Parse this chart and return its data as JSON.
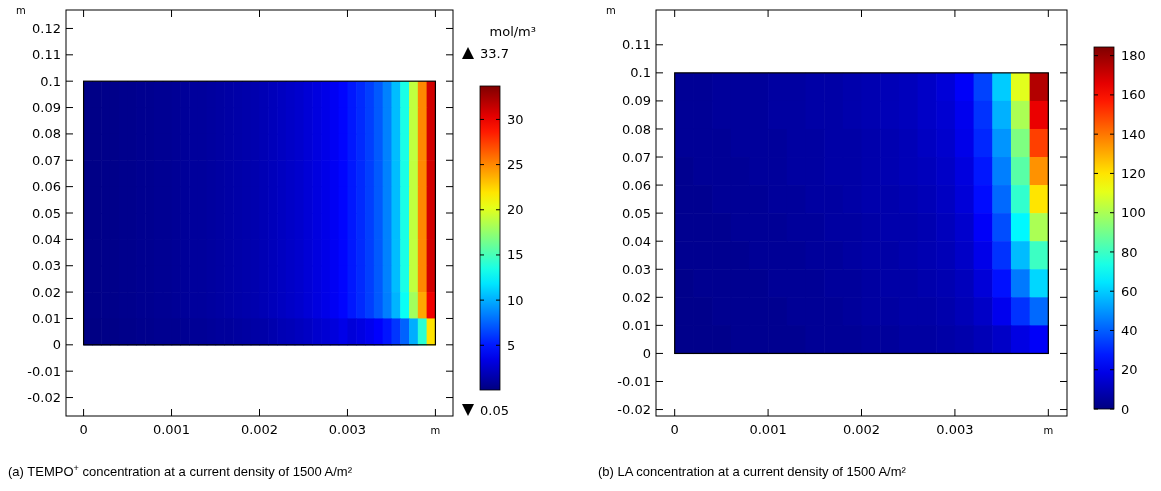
{
  "chart_data": [
    {
      "type": "heatmap",
      "title": "(a) TEMPO$^{+}$ concentration at a current density of 1500 A/m²",
      "xlabel": "m",
      "ylabel": "m",
      "clabel": "mol/m³",
      "xlim": [
        -0.0002,
        0.0042
      ],
      "ylim": [
        -0.027,
        0.127
      ],
      "xticks": [
        0,
        0.001,
        0.002,
        0.003,
        {
          "value": 0.004,
          "label": null
        }
      ],
      "yticks": [
        -0.02,
        -0.01,
        0,
        0.01,
        0.02,
        0.03,
        0.04,
        0.05,
        0.06,
        0.07,
        0.08,
        0.09,
        0.1,
        0.11,
        0.12
      ],
      "clim": [
        0.05,
        33.7
      ],
      "cticks": [
        5,
        10,
        15,
        20,
        25,
        30
      ],
      "annotations": [
        "33.7",
        "0.05"
      ],
      "x": [
        5e-05,
        0.00015,
        0.00025,
        0.00035,
        0.00045,
        0.00055,
        0.00065,
        0.00075,
        0.00085,
        0.00095,
        0.00105,
        0.00115,
        0.00125,
        0.00135,
        0.00145,
        0.00155,
        0.00165,
        0.00175,
        0.00185,
        0.00195,
        0.00205,
        0.00215,
        0.00225,
        0.00235,
        0.00245,
        0.00255,
        0.00265,
        0.00275,
        0.00285,
        0.00295,
        0.00305,
        0.00315,
        0.00325,
        0.00335,
        0.00345,
        0.00355,
        0.00365,
        0.00375,
        0.00385,
        0.00395
      ],
      "y": [
        0.095,
        0.085,
        0.075,
        0.065,
        0.055,
        0.045,
        0.035,
        0.025,
        0.015,
        0.005
      ],
      "cells": [
        [
          0.3,
          0.3,
          0.4,
          0.4,
          0.5,
          0.5,
          0.6,
          0.6,
          0.7,
          0.7,
          0.8,
          0.9,
          1.0,
          1.0,
          1.1,
          1.2,
          1.3,
          1.4,
          1.5,
          1.6,
          1.8,
          2.0,
          2.2,
          2.4,
          2.6,
          2.9,
          3.2,
          3.5,
          3.9,
          4.4,
          5,
          5.6,
          6.3,
          7.2,
          8.5,
          10.5,
          13.5,
          19,
          25,
          31
        ],
        [
          0.3,
          0.3,
          0.4,
          0.4,
          0.5,
          0.5,
          0.6,
          0.6,
          0.7,
          0.7,
          0.8,
          0.9,
          1.0,
          1.0,
          1.1,
          1.2,
          1.3,
          1.4,
          1.5,
          1.6,
          1.8,
          2.0,
          2.2,
          2.4,
          2.6,
          2.9,
          3.2,
          3.5,
          3.9,
          4.4,
          5,
          5.6,
          6.3,
          7.2,
          8.5,
          10.5,
          13.5,
          19,
          25,
          31
        ],
        [
          0.3,
          0.3,
          0.4,
          0.4,
          0.5,
          0.5,
          0.6,
          0.6,
          0.7,
          0.7,
          0.8,
          0.9,
          1.0,
          1.0,
          1.1,
          1.2,
          1.3,
          1.4,
          1.5,
          1.6,
          1.8,
          2.0,
          2.2,
          2.4,
          2.6,
          2.9,
          3.2,
          3.5,
          3.9,
          4.4,
          5,
          5.6,
          6.3,
          7.2,
          8.5,
          10.5,
          13.5,
          19,
          25,
          31
        ],
        [
          0.3,
          0.3,
          0.4,
          0.4,
          0.5,
          0.5,
          0.6,
          0.6,
          0.7,
          0.7,
          0.8,
          0.9,
          1.0,
          1.0,
          1.1,
          1.2,
          1.3,
          1.4,
          1.5,
          1.6,
          1.8,
          2.0,
          2.2,
          2.4,
          2.6,
          2.9,
          3.2,
          3.5,
          3.9,
          4.4,
          5,
          5.6,
          6.3,
          7.2,
          8.5,
          10.5,
          13.5,
          19,
          25,
          31
        ],
        [
          0.3,
          0.3,
          0.4,
          0.4,
          0.5,
          0.5,
          0.6,
          0.6,
          0.7,
          0.7,
          0.8,
          0.9,
          1.0,
          1.0,
          1.1,
          1.2,
          1.3,
          1.4,
          1.5,
          1.6,
          1.8,
          2.0,
          2.2,
          2.4,
          2.6,
          2.9,
          3.2,
          3.5,
          3.9,
          4.4,
          5,
          5.6,
          6.3,
          7.2,
          8.5,
          10.5,
          13.5,
          19,
          25,
          31
        ],
        [
          0.3,
          0.3,
          0.4,
          0.4,
          0.5,
          0.5,
          0.6,
          0.6,
          0.7,
          0.7,
          0.8,
          0.9,
          1.0,
          1.0,
          1.1,
          1.2,
          1.3,
          1.4,
          1.5,
          1.6,
          1.8,
          2.0,
          2.2,
          2.4,
          2.6,
          2.9,
          3.2,
          3.5,
          3.9,
          4.4,
          5,
          5.6,
          6.3,
          7.2,
          8.5,
          10.5,
          13.5,
          19,
          25,
          31
        ],
        [
          0.3,
          0.3,
          0.4,
          0.4,
          0.5,
          0.5,
          0.6,
          0.6,
          0.7,
          0.7,
          0.8,
          0.9,
          1.0,
          1.0,
          1.1,
          1.2,
          1.3,
          1.4,
          1.5,
          1.6,
          1.8,
          2.0,
          2.2,
          2.4,
          2.6,
          2.9,
          3.2,
          3.5,
          3.9,
          4.4,
          5,
          5.6,
          6.3,
          7.2,
          8.5,
          10.5,
          13.5,
          19,
          25,
          31
        ],
        [
          0.3,
          0.3,
          0.4,
          0.4,
          0.5,
          0.5,
          0.6,
          0.6,
          0.7,
          0.7,
          0.8,
          0.9,
          1.0,
          1.0,
          1.1,
          1.2,
          1.3,
          1.4,
          1.5,
          1.6,
          1.8,
          2.0,
          2.2,
          2.4,
          2.6,
          2.9,
          3.2,
          3.5,
          3.9,
          4.4,
          5,
          5.6,
          6.3,
          7.2,
          8.5,
          10.5,
          13.5,
          19,
          25,
          31
        ],
        [
          0.3,
          0.3,
          0.4,
          0.4,
          0.5,
          0.5,
          0.6,
          0.6,
          0.7,
          0.7,
          0.8,
          0.9,
          1.0,
          1.0,
          1.1,
          1.2,
          1.3,
          1.4,
          1.5,
          1.6,
          1.8,
          2.0,
          2.2,
          2.4,
          2.6,
          2.9,
          3.2,
          3.5,
          3.9,
          4.4,
          5,
          5.6,
          6.3,
          7.2,
          8.4,
          10.2,
          13,
          18,
          24,
          30
        ],
        [
          0.2,
          0.2,
          0.3,
          0.3,
          0.4,
          0.4,
          0.5,
          0.5,
          0.6,
          0.6,
          0.6,
          0.7,
          0.8,
          0.8,
          0.9,
          1.0,
          1.0,
          1.1,
          1.2,
          1.3,
          1.4,
          1.6,
          1.8,
          1.9,
          2.1,
          2.3,
          2.6,
          2.8,
          3.1,
          3.5,
          3,
          3.3,
          3.7,
          4.2,
          4.9,
          6,
          7.5,
          10,
          14,
          22
        ]
      ]
    },
    {
      "type": "heatmap",
      "title": "(b) LA concentration at a current density of 1500 A/m²",
      "xlabel": "m",
      "ylabel": "m",
      "xlim": [
        -0.0002,
        0.0042
      ],
      "ylim": [
        -0.0223,
        0.1224
      ],
      "xticks": [
        0,
        0.001,
        0.002,
        0.003,
        {
          "value": 0.004,
          "label": null
        }
      ],
      "yticks": [
        -0.02,
        -0.01,
        0,
        0.01,
        0.02,
        0.03,
        0.04,
        0.05,
        0.06,
        0.07,
        0.08,
        0.09,
        0.1,
        0.11
      ],
      "clim": [
        0,
        184.4
      ],
      "cticks": [
        0,
        20,
        40,
        60,
        80,
        100,
        120,
        140,
        160,
        180
      ],
      "x": [
        0.0001,
        0.0003,
        0.0005,
        0.0007,
        0.0009,
        0.0011,
        0.0013,
        0.0015,
        0.0017,
        0.0019,
        0.0021,
        0.0023,
        0.0025,
        0.0027,
        0.0029,
        0.0031,
        0.0033,
        0.0035,
        0.0037,
        0.0039
      ],
      "y": [
        0.095,
        0.085,
        0.075,
        0.065,
        0.055,
        0.045,
        0.035,
        0.025,
        0.015,
        0.005
      ],
      "cells": [
        [
          4,
          4,
          5,
          5,
          5,
          6,
          6,
          7,
          7,
          8,
          9,
          10,
          11,
          13,
          16,
          22,
          35,
          60,
          110,
          175
        ],
        [
          4,
          4,
          5,
          5,
          5,
          6,
          6,
          7,
          7,
          8,
          9,
          10,
          11,
          13,
          15,
          20,
          32,
          55,
          100,
          165
        ],
        [
          4,
          4,
          4,
          5,
          5,
          5,
          6,
          6,
          7,
          7,
          8,
          9,
          10,
          12,
          14,
          19,
          30,
          50,
          92,
          150
        ],
        [
          3,
          4,
          4,
          4,
          5,
          5,
          6,
          6,
          7,
          7,
          8,
          9,
          10,
          11,
          13,
          17,
          27,
          46,
          85,
          135
        ],
        [
          3,
          3,
          4,
          4,
          4,
          5,
          5,
          6,
          6,
          7,
          8,
          8,
          9,
          10,
          12,
          16,
          25,
          42,
          78,
          120
        ],
        [
          3,
          3,
          3,
          4,
          4,
          4,
          5,
          5,
          6,
          6,
          7,
          8,
          8,
          9,
          11,
          14,
          22,
          37,
          68,
          100
        ],
        [
          3,
          3,
          3,
          3,
          4,
          4,
          4,
          5,
          5,
          6,
          7,
          7,
          8,
          9,
          10,
          13,
          19,
          32,
          57,
          80
        ],
        [
          2,
          3,
          3,
          3,
          3,
          4,
          4,
          4,
          5,
          5,
          6,
          7,
          7,
          8,
          9,
          11,
          16,
          26,
          45,
          62
        ],
        [
          2,
          2,
          3,
          3,
          3,
          3,
          4,
          4,
          4,
          5,
          6,
          6,
          7,
          7,
          8,
          10,
          13,
          20,
          32,
          42
        ],
        [
          2,
          2,
          2,
          3,
          3,
          3,
          3,
          4,
          4,
          4,
          5,
          5,
          6,
          6,
          7,
          8,
          10,
          13,
          18,
          22
        ]
      ]
    }
  ]
}
